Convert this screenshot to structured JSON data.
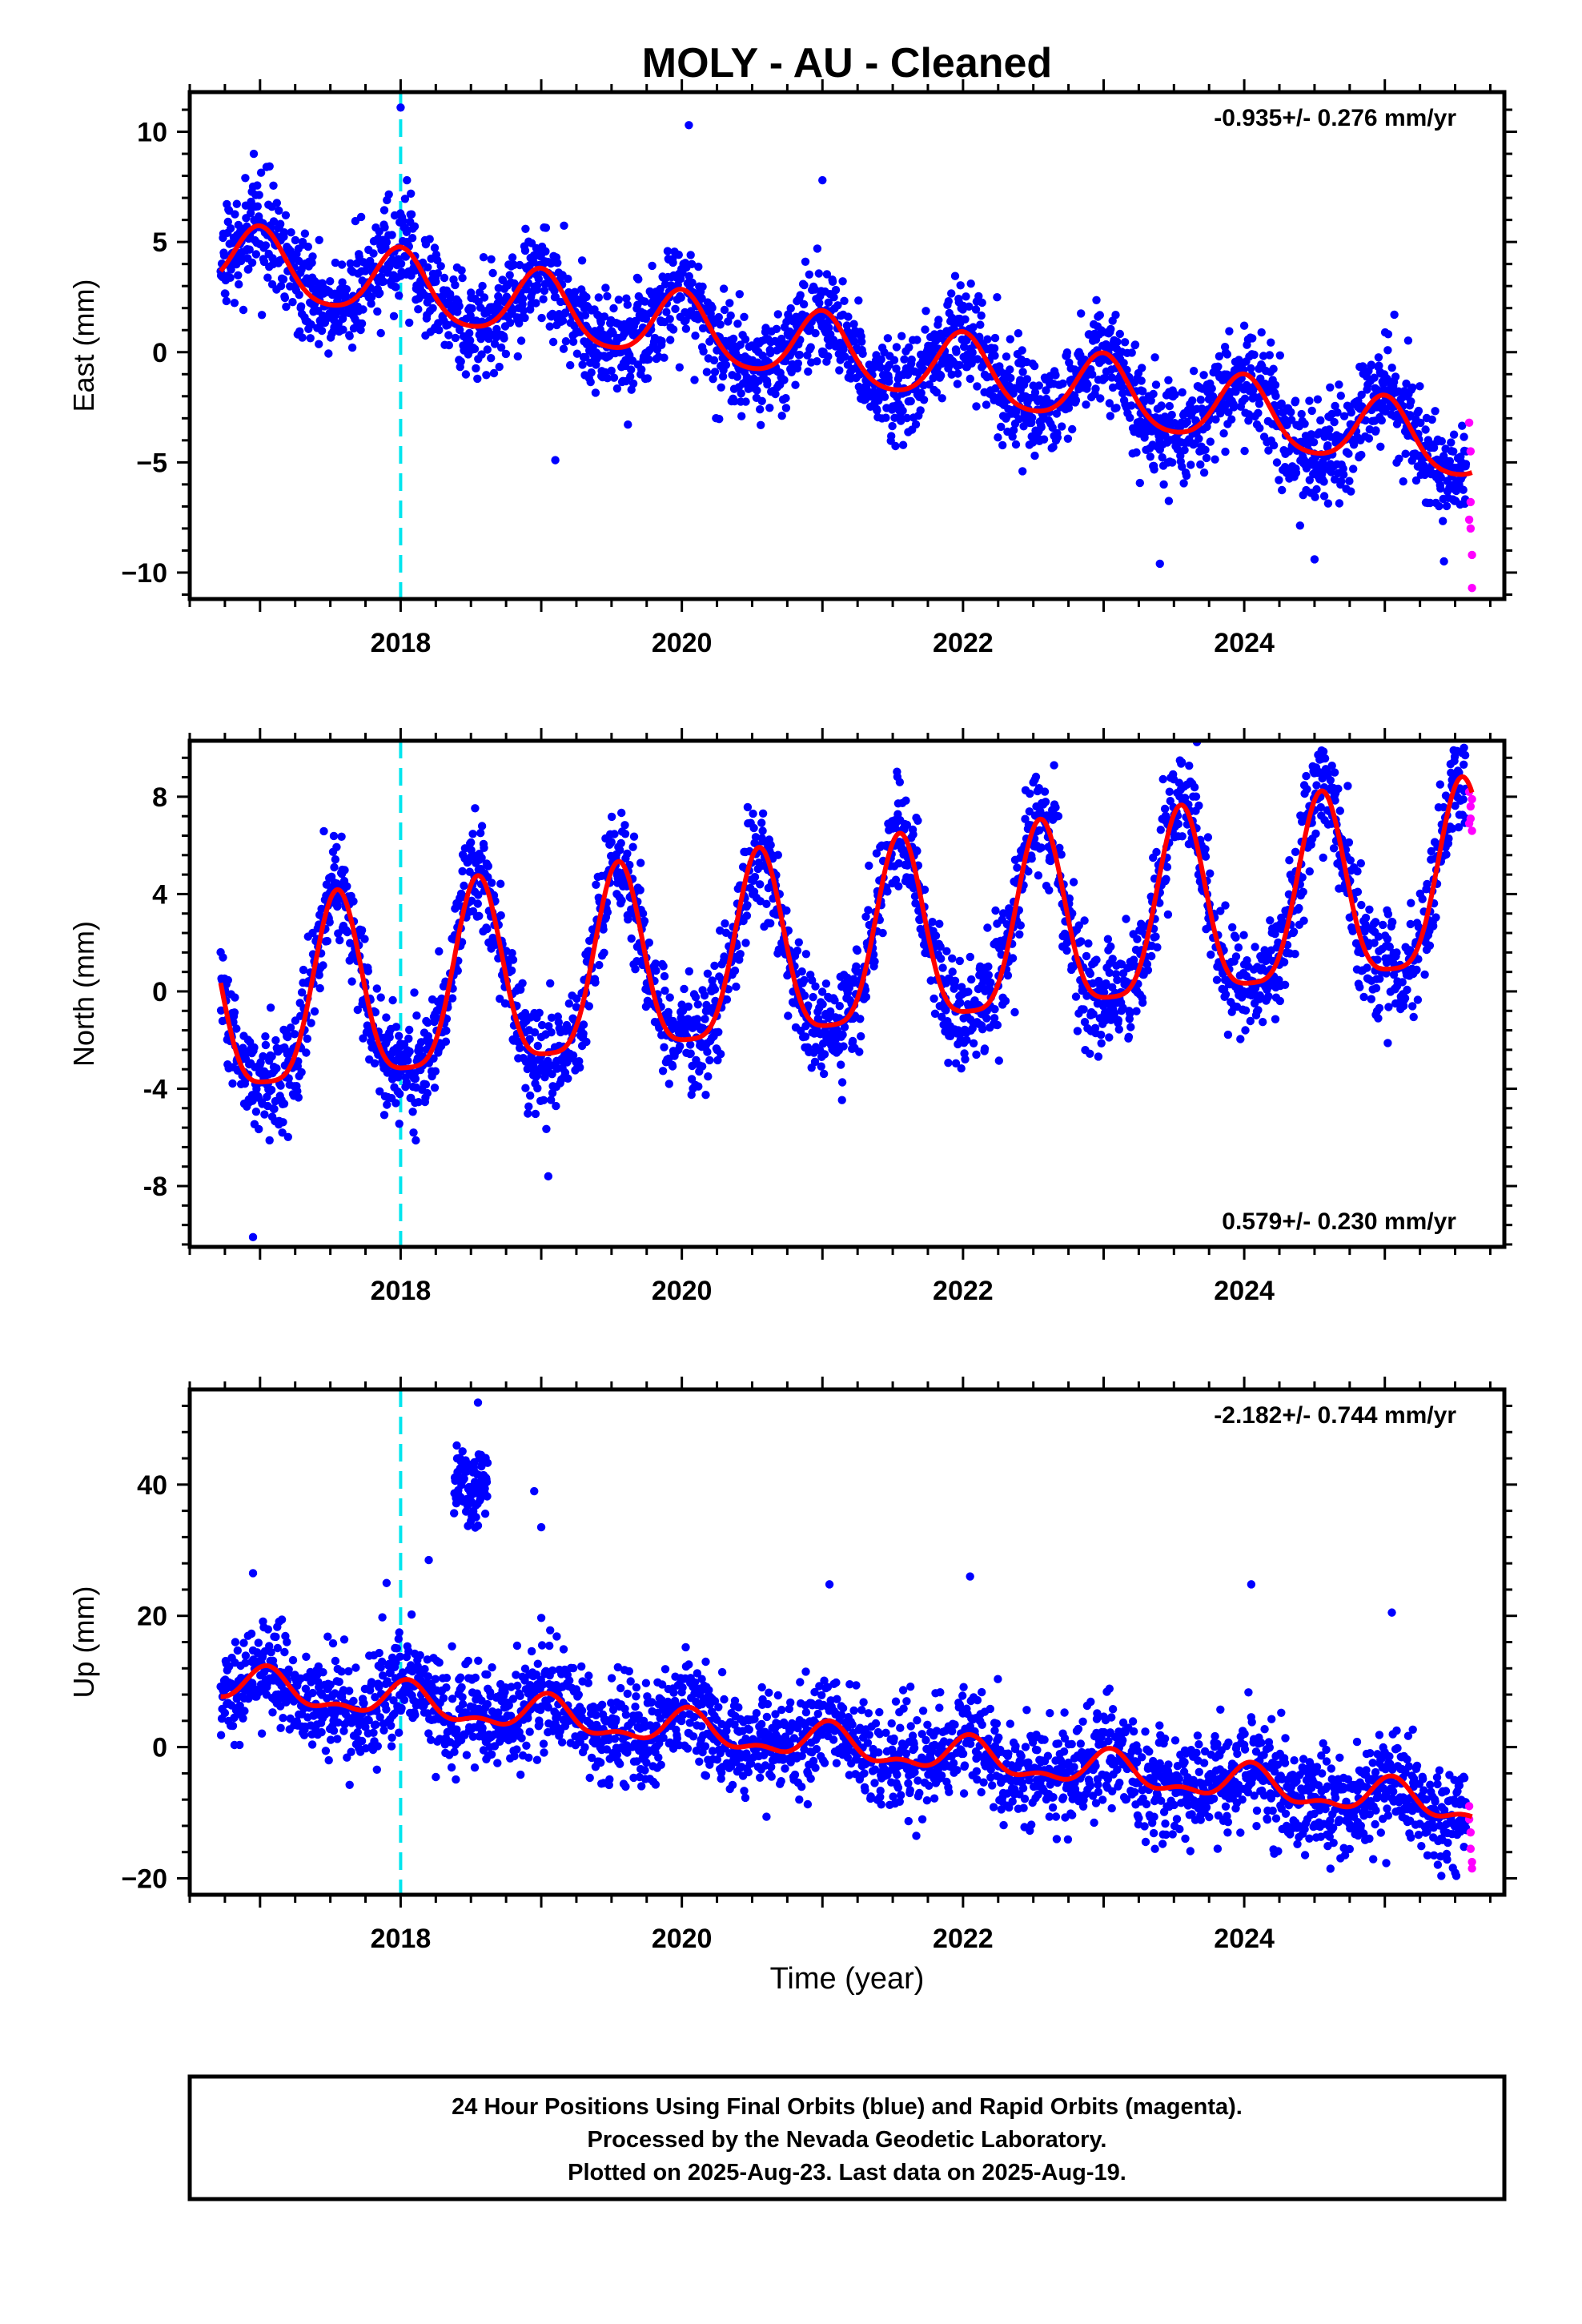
{
  "title": "MOLY  - AU - Cleaned",
  "xlabel": "Time (year)",
  "footer": [
    "24 Hour Positions Using Final Orbits (blue) and Rapid Orbits (magenta).",
    "Processed by the Nevada Geodetic Laboratory.",
    "Plotted on 2025-Aug-23. Last data on 2025-Aug-19."
  ],
  "colors": {
    "final_orbits": "#0000ff",
    "rapid_orbits": "#ff00ff",
    "model": "#ff0000",
    "marker_line": "#00e5ee",
    "frame": "#000000"
  },
  "chart_data": [
    {
      "type": "scatter",
      "ylabel": "East (mm)",
      "rate": "-0.935+/- 0.276 mm/yr",
      "rate_position": "top-right",
      "xlim": [
        2016.5,
        2025.85
      ],
      "ylim": [
        -11.2,
        11.8
      ],
      "xticks": [
        2018,
        2020,
        2022,
        2024
      ],
      "yticks": [
        -10,
        -5,
        0,
        5,
        10
      ],
      "xtick_labels": [
        "2018",
        "2020",
        "2022",
        "2024"
      ],
      "ytick_labels": [
        "−10",
        "−5",
        "0",
        "5",
        "10"
      ],
      "vline_x": 2018.0,
      "trend_fit": {
        "t0": 2016.72,
        "end": 2025.62,
        "intercept": 4.2,
        "slope": -0.96,
        "annual_amplitude": 1.55,
        "annual_peak": 2017.0,
        "semiannual_amplitude": 0.25,
        "noise_sd": 1.15
      },
      "series": [
        {
          "name": "Final Orbits",
          "color": "#0000ff",
          "start": 2016.72,
          "end": 2025.58
        },
        {
          "name": "Rapid Orbits",
          "color": "#ff00ff",
          "start": 2025.59,
          "end": 2025.63
        }
      ],
      "outliers": [
        [
          2018.0,
          11.1
        ],
        [
          2019.1,
          -4.9
        ],
        [
          2020.05,
          10.3
        ],
        [
          2020.45,
          -0.2
        ],
        [
          2021.0,
          7.8
        ],
        [
          2024.5,
          -9.4
        ],
        [
          2023.4,
          -9.6
        ]
      ],
      "rapid_points": [
        [
          2025.6,
          -3.2
        ],
        [
          2025.61,
          -6.8
        ],
        [
          2025.61,
          -8.0
        ],
        [
          2025.62,
          -9.2
        ],
        [
          2025.62,
          -10.7
        ],
        [
          2025.6,
          -7.6
        ],
        [
          2025.61,
          -4.5
        ]
      ]
    },
    {
      "type": "scatter",
      "ylabel": "North (mm)",
      "rate": "0.579+/- 0.230 mm/yr",
      "rate_position": "bottom-right",
      "xlim": [
        2016.5,
        2025.85
      ],
      "ylim": [
        -10.5,
        10.3
      ],
      "xticks": [
        2018,
        2020,
        2022,
        2024
      ],
      "yticks": [
        -8,
        -4,
        0,
        4,
        8
      ],
      "xtick_labels": [
        "2018",
        "2020",
        "2022",
        "2024"
      ],
      "ytick_labels": [
        "-8",
        "-4",
        "0",
        "4",
        "8"
      ],
      "vline_x": 2018.0,
      "trend_fit": {
        "t0": 2016.72,
        "end": 2025.62,
        "intercept": -1.0,
        "slope": 0.58,
        "annual_amplitude": 3.8,
        "annual_peak": 2017.55,
        "semiannual_amplitude": 0.9,
        "noise_sd": 1.1
      },
      "series": [
        {
          "name": "Final Orbits",
          "color": "#0000ff",
          "start": 2016.72,
          "end": 2025.58
        },
        {
          "name": "Rapid Orbits",
          "color": "#ff00ff",
          "start": 2025.59,
          "end": 2025.63
        }
      ],
      "outliers": [
        [
          2016.95,
          -10.1
        ],
        [
          2024.55,
          9.9
        ],
        [
          2021.55,
          8.6
        ],
        [
          2019.05,
          -7.6
        ]
      ],
      "rapid_points": [
        [
          2025.6,
          8.2
        ],
        [
          2025.61,
          7.6
        ],
        [
          2025.61,
          7.1
        ],
        [
          2025.62,
          6.6
        ],
        [
          2025.6,
          6.9
        ],
        [
          2025.62,
          7.9
        ]
      ]
    },
    {
      "type": "scatter",
      "ylabel": "Up (mm)",
      "rate": "-2.182+/- 0.744 mm/yr",
      "rate_position": "top-right",
      "xlim": [
        2016.5,
        2025.85
      ],
      "ylim": [
        -22.5,
        54.5
      ],
      "xticks": [
        2018,
        2020,
        2022,
        2024
      ],
      "yticks": [
        -20,
        0,
        20,
        40
      ],
      "xtick_labels": [
        "2018",
        "2020",
        "2022",
        "2024"
      ],
      "ytick_labels": [
        "−20",
        "0",
        "20",
        "40"
      ],
      "vline_x": 2018.0,
      "trend_fit": {
        "t0": 2016.72,
        "end": 2025.62,
        "intercept": 9.5,
        "slope": -2.1,
        "annual_amplitude": 2.4,
        "annual_peak": 2017.05,
        "semiannual_amplitude": 1.2,
        "noise_sd": 3.9
      },
      "series": [
        {
          "name": "Final Orbits",
          "color": "#0000ff",
          "start": 2016.72,
          "end": 2025.58
        },
        {
          "name": "Rapid Orbits",
          "color": "#ff00ff",
          "start": 2025.59,
          "end": 2025.63
        }
      ],
      "cluster": {
        "start": 2018.38,
        "end": 2018.62,
        "center": 40,
        "spread": 5
      },
      "outliers": [
        [
          2018.55,
          52.5
        ],
        [
          2018.95,
          39.0
        ],
        [
          2019.0,
          33.5
        ],
        [
          2016.95,
          26.5
        ],
        [
          2021.05,
          24.8
        ],
        [
          2022.05,
          26.0
        ],
        [
          2024.05,
          24.8
        ],
        [
          2025.05,
          20.5
        ],
        [
          2017.9,
          25.0
        ],
        [
          2018.2,
          28.5
        ]
      ],
      "rapid_points": [
        [
          2025.6,
          -9.0
        ],
        [
          2025.61,
          -13.0
        ],
        [
          2025.61,
          -15.5
        ],
        [
          2025.62,
          -17.5
        ],
        [
          2025.62,
          -18.5
        ],
        [
          2025.6,
          -11.0
        ]
      ]
    }
  ]
}
